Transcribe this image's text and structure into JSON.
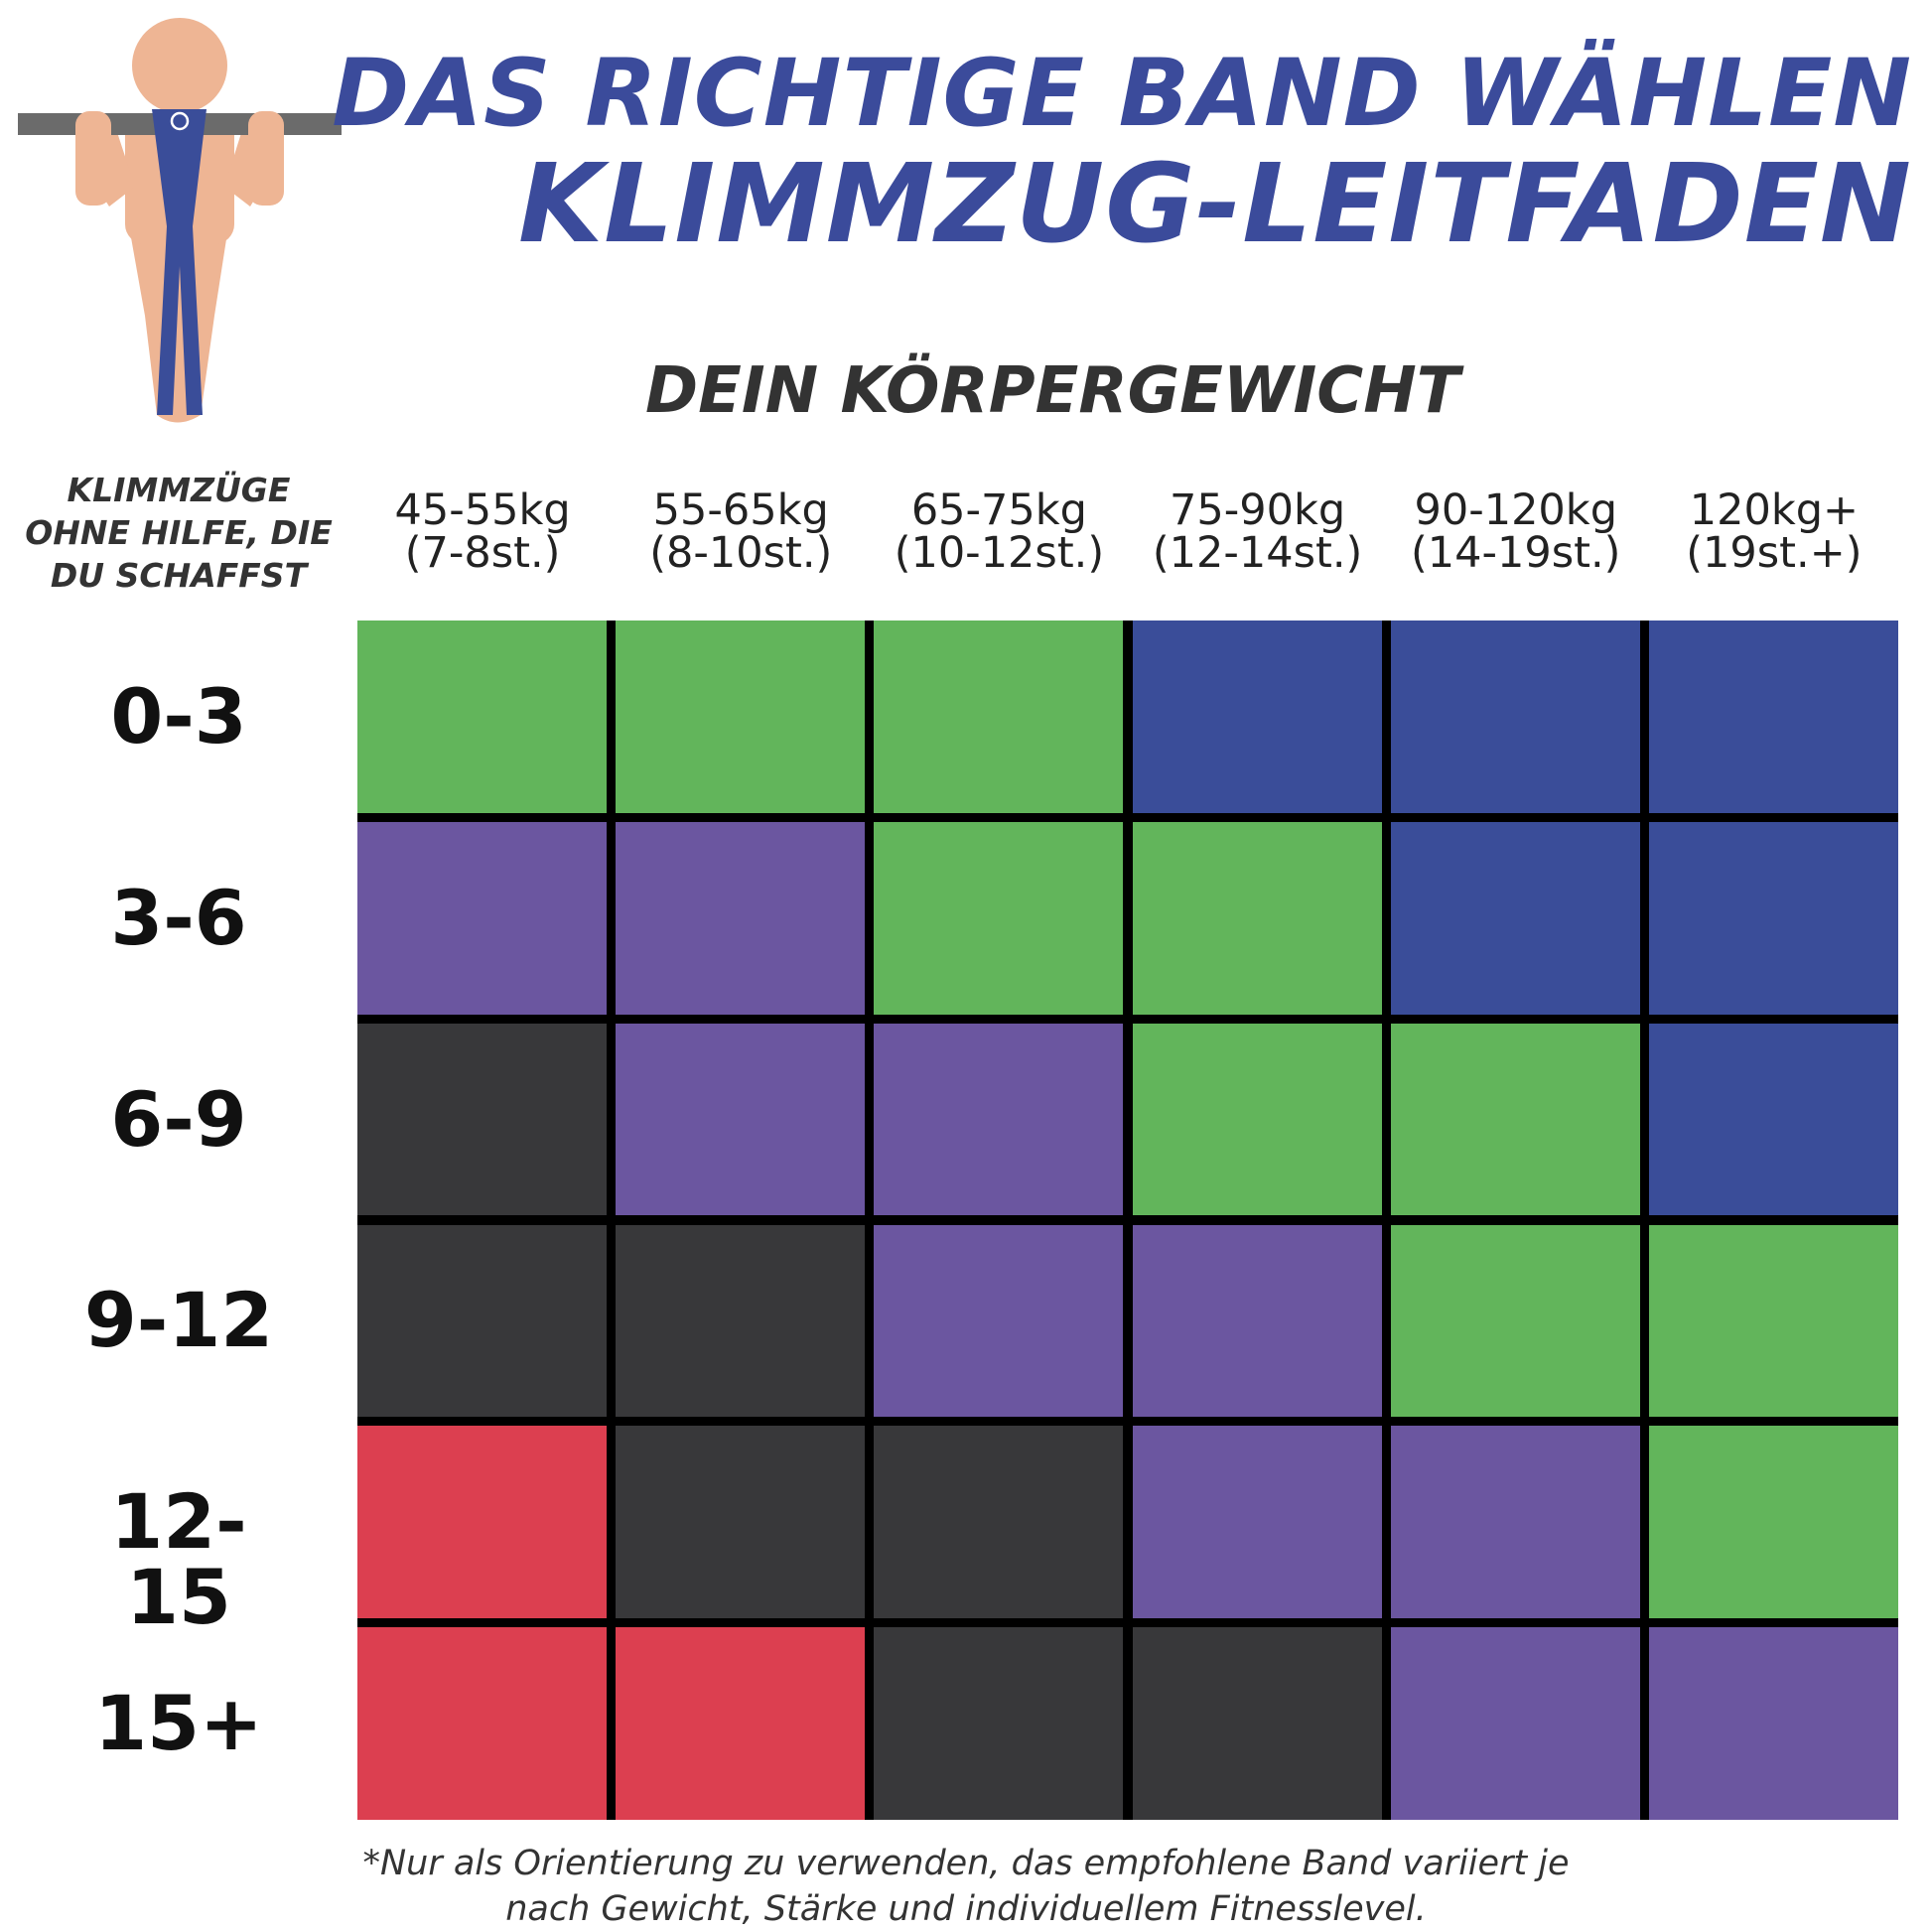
{
  "title": {
    "line1": "DAS RICHTIGE BAND WÄHLEN",
    "line2": "KLIMMZUG-LEITFADEN"
  },
  "weight_heading": "DEIN KÖRPERGEWICHT",
  "row_heading": "KLIMMZÜGE OHNE HILFE, DIE DU SCHAFFST",
  "columns": [
    {
      "kg": "45-55kg",
      "st": "(7-8st.)"
    },
    {
      "kg": "55-65kg",
      "st": "(8-10st.)"
    },
    {
      "kg": "65-75kg",
      "st": "(10-12st.)"
    },
    {
      "kg": "75-90kg",
      "st": "(12-14st.)"
    },
    {
      "kg": "90-120kg",
      "st": "(14-19st.)"
    },
    {
      "kg": "120kg+",
      "st": "(19st.+)"
    }
  ],
  "rows": [
    "0-3",
    "3-6",
    "6-9",
    "9-12",
    "12-15",
    "15+"
  ],
  "band_colors": {
    "green": "#62b55b",
    "blue": "#3a4d99",
    "purple": "#6b56a0",
    "black": "#38383a",
    "red": "#dc3f50"
  },
  "matrix": [
    [
      "green",
      "green",
      "green",
      "blue",
      "blue",
      "blue"
    ],
    [
      "purple",
      "purple",
      "green",
      "green",
      "blue",
      "blue"
    ],
    [
      "black",
      "purple",
      "purple",
      "green",
      "green",
      "blue"
    ],
    [
      "black",
      "black",
      "purple",
      "purple",
      "green",
      "green"
    ],
    [
      "red",
      "black",
      "black",
      "purple",
      "purple",
      "green"
    ],
    [
      "red",
      "red",
      "black",
      "black",
      "purple",
      "purple"
    ]
  ],
  "footnote": {
    "line1": "*Nur als Orientierung zu verwenden, das empfohlene Band variiert je",
    "line2": "nach Gewicht, Stärke und individuellem Fitnesslevel."
  },
  "figure": {
    "skin_color": "#eeb594",
    "bar_color": "#6b6b6b",
    "band_color": "#3a4d99"
  }
}
